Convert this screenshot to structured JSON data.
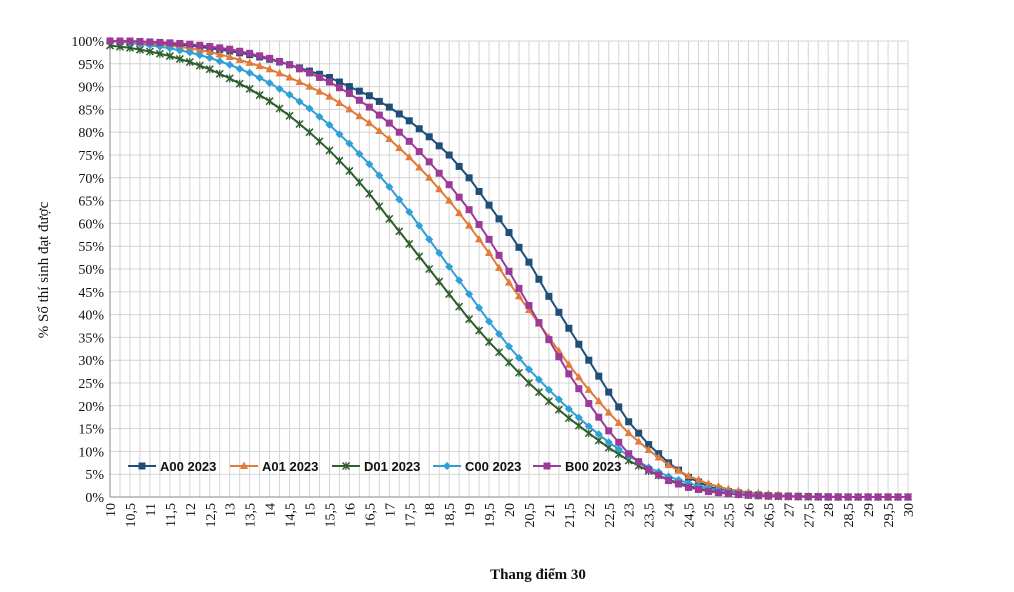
{
  "chart_data": {
    "type": "line",
    "xlabel": "Thang điểm 30",
    "ylabel": "% Số thí sinh đạt được",
    "xlim": [
      10,
      30
    ],
    "ylim": [
      0,
      100
    ],
    "grid": true,
    "legend_position": "bottom-left-inside",
    "x_ticks": [
      "10",
      "10,5",
      "11",
      "11,5",
      "12",
      "12,5",
      "13",
      "13,5",
      "14",
      "14,5",
      "15",
      "15,5",
      "16",
      "16,5",
      "17",
      "17,5",
      "18",
      "18,5",
      "19",
      "19,5",
      "20",
      "20,5",
      "21",
      "21,5",
      "22",
      "22,5",
      "23",
      "23,5",
      "24",
      "24,5",
      "25",
      "25,5",
      "26",
      "26,5",
      "27",
      "27,5",
      "28",
      "28,5",
      "29",
      "29,5",
      "30"
    ],
    "y_ticks": [
      "0%",
      "5%",
      "10%",
      "15%",
      "20%",
      "25%",
      "30%",
      "35%",
      "40%",
      "45%",
      "50%",
      "55%",
      "60%",
      "65%",
      "70%",
      "75%",
      "80%",
      "85%",
      "90%",
      "95%",
      "100%"
    ],
    "x": [
      10,
      10.5,
      11,
      11.5,
      12,
      12.5,
      13,
      13.5,
      14,
      14.5,
      15,
      15.5,
      16,
      16.5,
      17,
      17.5,
      18,
      18.5,
      19,
      19.5,
      20,
      20.5,
      21,
      21.5,
      22,
      22.5,
      23,
      23.5,
      24,
      24.5,
      25,
      25.5,
      26,
      26.5,
      27,
      27.5,
      28,
      28.5,
      29,
      29.5,
      30
    ],
    "series": [
      {
        "name": "A00 2023",
        "color": "#1f4e79",
        "marker": "square",
        "values": [
          100,
          99.8,
          99.6,
          99.3,
          99,
          98.4,
          97.8,
          97,
          96,
          94.8,
          93.4,
          92,
          90,
          88,
          85.5,
          82.5,
          79,
          75,
          70,
          64,
          58,
          51.5,
          44,
          37,
          30,
          23,
          16.5,
          11.5,
          7.5,
          4.3,
          2.3,
          1.2,
          0.6,
          0.3,
          0.2,
          0.1,
          0.05,
          0,
          0,
          0,
          0
        ]
      },
      {
        "name": "A01 2023",
        "color": "#e07b39",
        "marker": "triangle",
        "values": [
          100,
          99.7,
          99.4,
          99,
          98.4,
          97.6,
          96.5,
          95.2,
          93.8,
          92,
          90,
          87.8,
          85,
          82,
          78.5,
          74.5,
          70,
          65,
          59.5,
          53.5,
          47,
          41,
          35,
          29,
          23.5,
          18.5,
          14,
          10.3,
          7,
          4.6,
          2.9,
          1.7,
          1,
          0.6,
          0.3,
          0.15,
          0.05,
          0,
          0,
          0,
          0
        ]
      },
      {
        "name": "D01 2023",
        "color": "#2e5e2e",
        "marker": "cross",
        "values": [
          99,
          98.5,
          97.7,
          96.7,
          95.4,
          93.8,
          91.8,
          89.5,
          86.8,
          83.6,
          80,
          76,
          71.5,
          66.5,
          61,
          55.5,
          50,
          44.5,
          39,
          34,
          29.5,
          25,
          21,
          17.3,
          14,
          10.8,
          8,
          5.7,
          3.8,
          2.4,
          1.4,
          0.8,
          0.4,
          0.2,
          0.1,
          0.05,
          0,
          0,
          0,
          0,
          0
        ]
      },
      {
        "name": "C00 2023",
        "color": "#2f9fd6",
        "marker": "diamond",
        "values": [
          100,
          99.6,
          99.1,
          98.4,
          97.5,
          96.3,
          94.8,
          93,
          90.8,
          88.2,
          85.2,
          81.6,
          77.5,
          73,
          68,
          62.5,
          56.5,
          50.5,
          44.5,
          38.5,
          33,
          28,
          23.5,
          19.3,
          15.5,
          12,
          9,
          6.5,
          4.5,
          3,
          1.9,
          1.1,
          0.6,
          0.3,
          0.15,
          0.05,
          0,
          0,
          0,
          0,
          0
        ]
      },
      {
        "name": "B00 2023",
        "color": "#9b3a97",
        "marker": "square",
        "values": [
          100,
          100,
          99.8,
          99.6,
          99.3,
          98.8,
          98.2,
          97.3,
          96.2,
          94.8,
          93,
          91,
          88.5,
          85.5,
          82,
          78,
          73.5,
          68.5,
          63,
          56.5,
          49.5,
          42,
          34.5,
          27,
          20.5,
          14.5,
          9.5,
          6,
          3.6,
          2.1,
          1.2,
          0.7,
          0.4,
          0.2,
          0.1,
          0.05,
          0,
          0,
          0,
          0,
          0
        ]
      }
    ]
  }
}
